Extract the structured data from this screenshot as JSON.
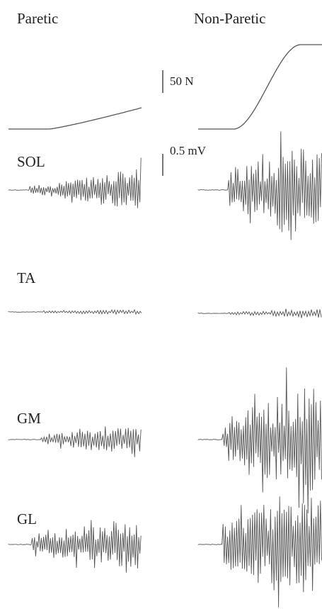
{
  "columns": {
    "paretic": "Paretic",
    "non_paretic": "Non-Paretic"
  },
  "scale_bars": {
    "force": "50 N",
    "emg": "0.5 mV"
  },
  "muscles": [
    "SOL",
    "TA",
    "GM",
    "GL"
  ],
  "colors": {
    "trace": "#555555",
    "text": "#222222"
  }
}
